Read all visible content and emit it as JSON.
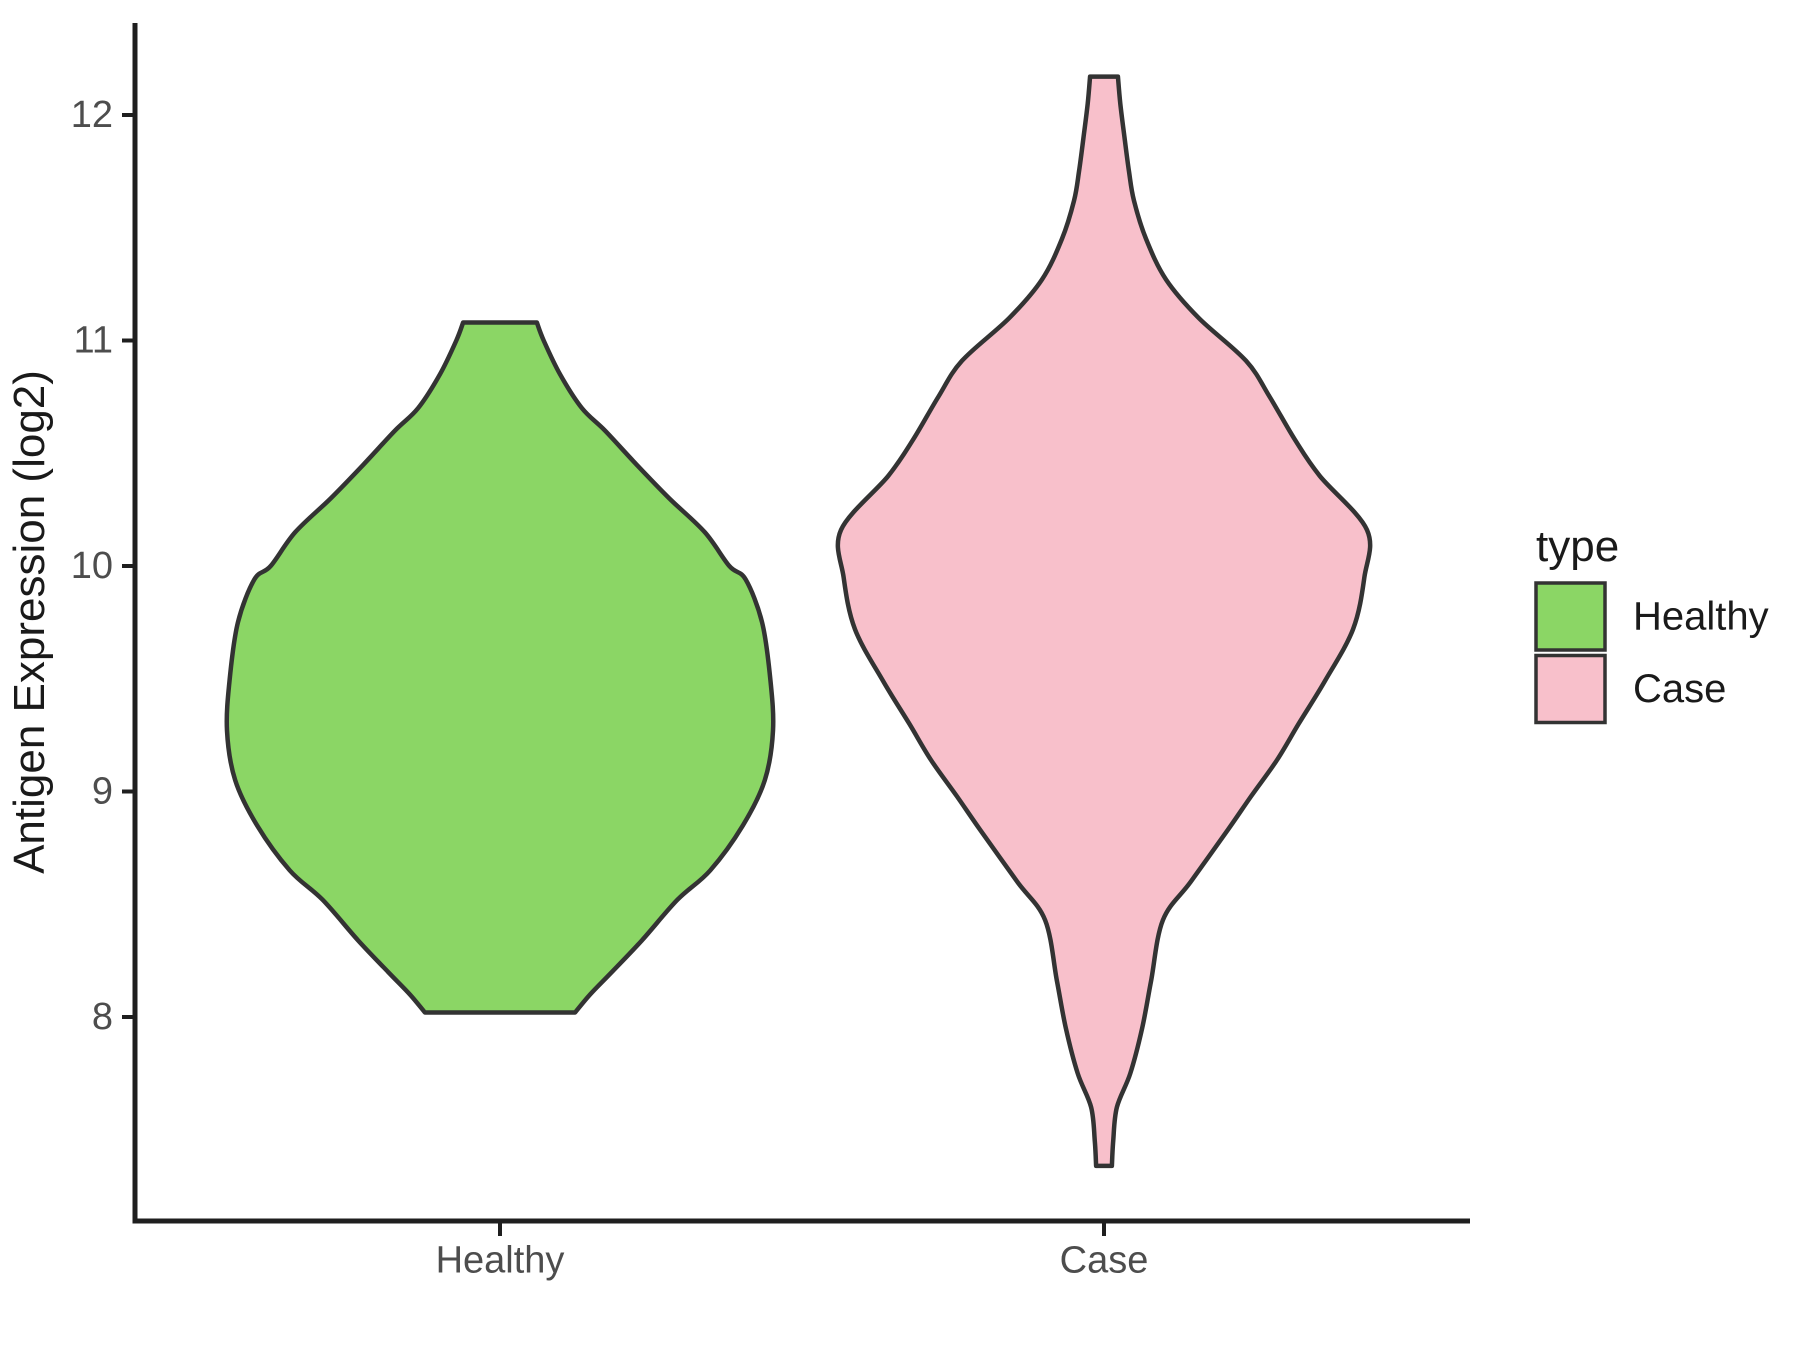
{
  "figure": {
    "background": "#FFFFFF"
  },
  "chart_data": {
    "type": "violin",
    "orientation": "vertical",
    "title": "",
    "xlabel": "",
    "ylabel": "Antigen Expression (log2)",
    "categories": [
      "Healthy",
      "Case"
    ],
    "y_ticks": [
      12,
      11,
      10,
      9,
      8
    ],
    "ylim": [
      7.1,
      12.4
    ],
    "grid": "off",
    "legend": {
      "title": "type",
      "position": "right",
      "entries": [
        {
          "label": "Healthy",
          "fill": "#8BD665"
        },
        {
          "label": "Case",
          "fill": "#F8C0CB"
        }
      ]
    },
    "axis": {
      "line_color": "#1F1F1F",
      "tick_label_color": "#4D4D4D",
      "title_color": "#1A1A1A",
      "legend_text_color": "#1A1A1A"
    },
    "series": [
      {
        "name": "Healthy",
        "fill": "#8BD665",
        "outline": "#333333",
        "y_min": 8.02,
        "y_max": 11.08,
        "peak_y": 9.27,
        "profile": [
          [
            11.08,
            0.135
          ],
          [
            11.0,
            0.16
          ],
          [
            10.85,
            0.22
          ],
          [
            10.7,
            0.3
          ],
          [
            10.6,
            0.385
          ],
          [
            10.45,
            0.5
          ],
          [
            10.3,
            0.62
          ],
          [
            10.15,
            0.75
          ],
          [
            10.0,
            0.84
          ],
          [
            9.94,
            0.9
          ],
          [
            9.75,
            0.96
          ],
          [
            9.5,
            0.99
          ],
          [
            9.27,
            1.0
          ],
          [
            9.05,
            0.97
          ],
          [
            8.85,
            0.89
          ],
          [
            8.65,
            0.77
          ],
          [
            8.52,
            0.65
          ],
          [
            8.34,
            0.52
          ],
          [
            8.2,
            0.41
          ],
          [
            8.1,
            0.33
          ],
          [
            8.02,
            0.275
          ]
        ]
      },
      {
        "name": "Case",
        "fill": "#F8C0CB",
        "outline": "#333333",
        "y_min": 7.34,
        "y_max": 12.17,
        "peak_y": 10.16,
        "profile": [
          [
            12.17,
            0.053
          ],
          [
            12.05,
            0.062
          ],
          [
            11.9,
            0.078
          ],
          [
            11.75,
            0.095
          ],
          [
            11.62,
            0.114
          ],
          [
            11.45,
            0.16
          ],
          [
            11.27,
            0.236
          ],
          [
            11.1,
            0.36
          ],
          [
            10.91,
            0.54
          ],
          [
            10.75,
            0.63
          ],
          [
            10.56,
            0.726
          ],
          [
            10.4,
            0.82
          ],
          [
            10.16,
            1.0
          ],
          [
            9.95,
            0.99
          ],
          [
            9.72,
            0.947
          ],
          [
            9.49,
            0.84
          ],
          [
            9.3,
            0.74
          ],
          [
            9.14,
            0.658
          ],
          [
            8.98,
            0.56
          ],
          [
            8.83,
            0.471
          ],
          [
            8.6,
            0.33
          ],
          [
            8.43,
            0.224
          ],
          [
            8.16,
            0.179
          ],
          [
            7.95,
            0.145
          ],
          [
            7.75,
            0.1
          ],
          [
            7.6,
            0.049
          ],
          [
            7.45,
            0.035
          ],
          [
            7.34,
            0.03
          ]
        ]
      }
    ]
  }
}
